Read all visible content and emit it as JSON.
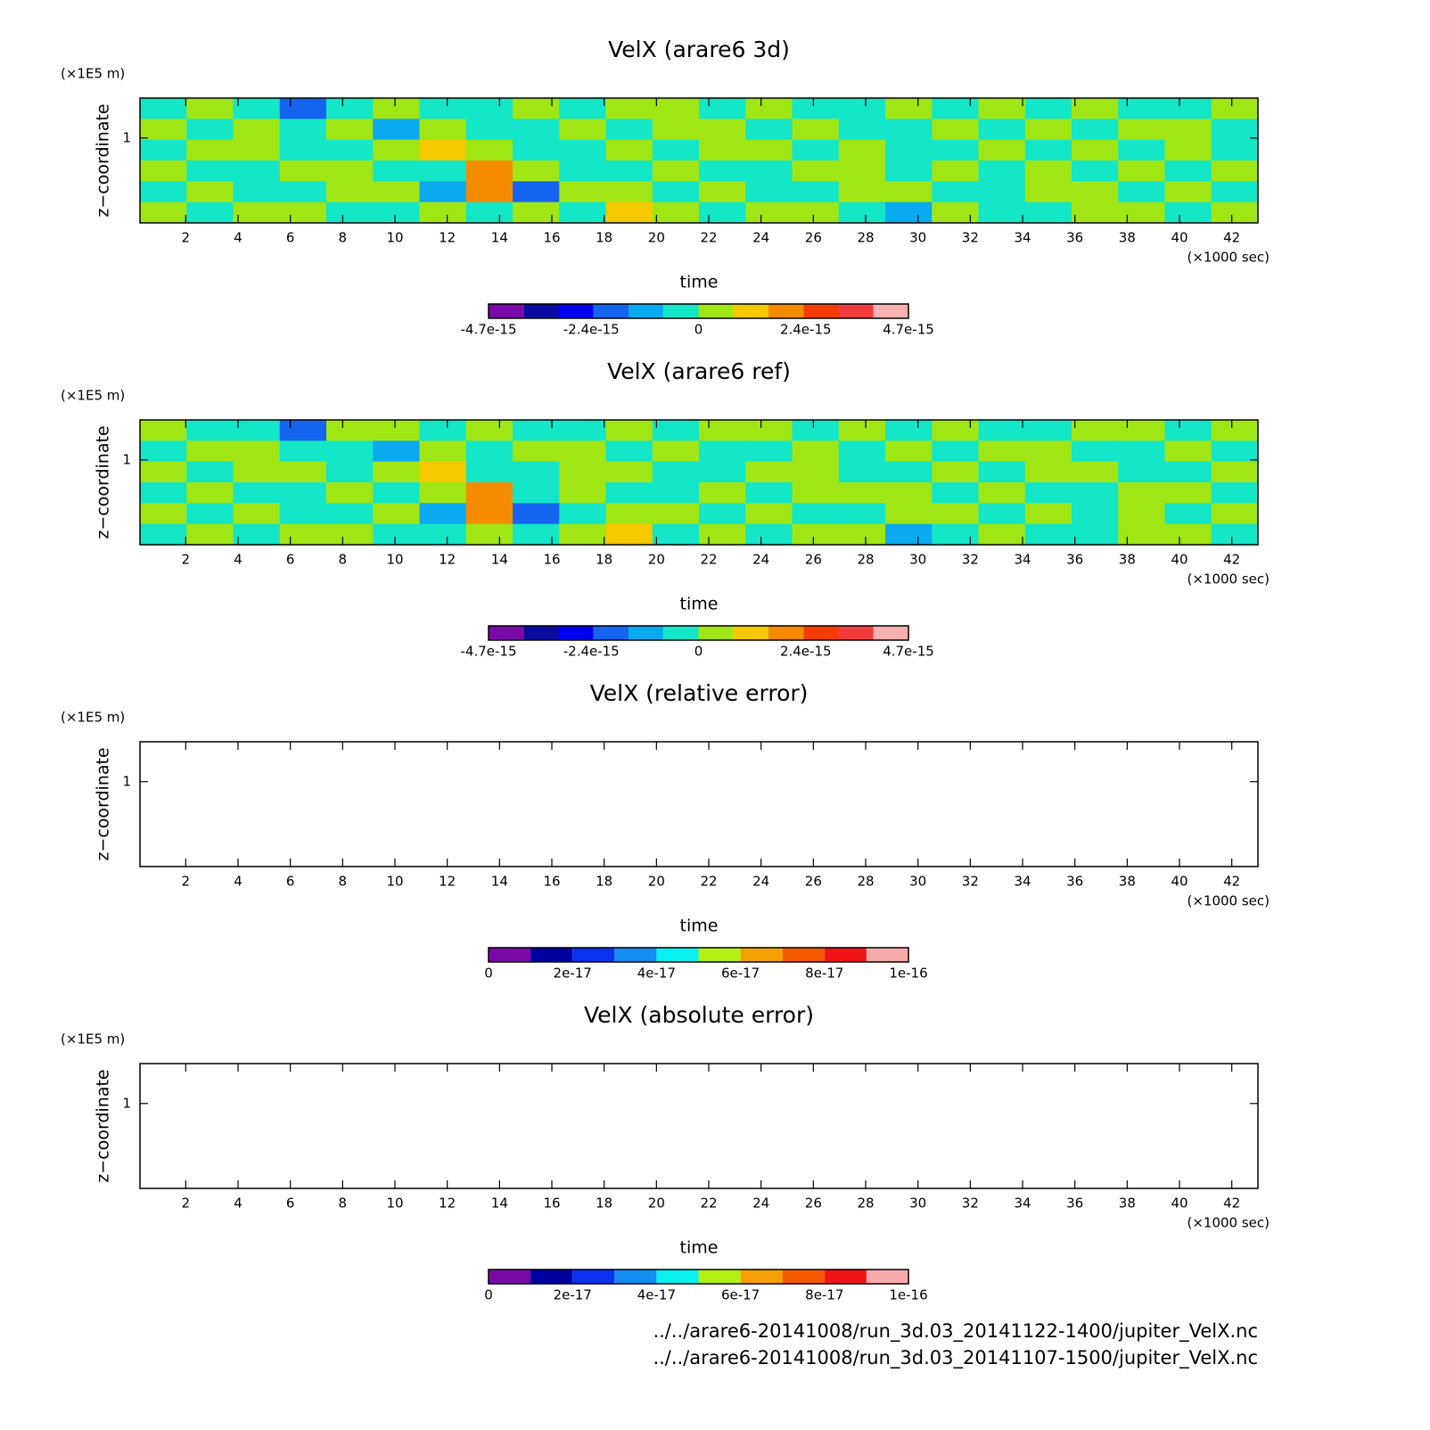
{
  "chart_data": [
    {
      "type": "contour",
      "title": "VelX (arare6 3d)",
      "xlabel": "time",
      "xunit": "(×1000 sec)",
      "ylabel": "z−coordinate",
      "yunit": "(×1E5 m)",
      "xlim": [
        0.25,
        43
      ],
      "ylim": [
        0,
        1.47
      ],
      "xticks": [
        2,
        4,
        6,
        8,
        10,
        12,
        14,
        16,
        18,
        20,
        22,
        24,
        26,
        28,
        30,
        32,
        34,
        36,
        38,
        40,
        42
      ],
      "yticks": [
        1
      ],
      "colorbar": {
        "lim": [
          -4.7e-15,
          4.7e-15
        ],
        "ticks": [
          -4.7e-15,
          -2.4e-15,
          0,
          2.4e-15,
          4.7e-15
        ],
        "colors": [
          "#7a0aa8",
          "#0a0aa0",
          "#0000f0",
          "#1464f0",
          "#0aaaf0",
          "#14e6c8",
          "#a0e614",
          "#f5c800",
          "#f58c00",
          "#f53c00",
          "#f03c3c",
          "#f8b0b0"
        ]
      },
      "values": [
        [
          -3e-16,
          3e-16,
          -3e-16,
          -2e-15,
          -3e-16,
          3e-16,
          -3e-16,
          -3e-16,
          3e-16,
          -3e-16,
          3e-16,
          3e-16,
          -3e-16,
          3e-16,
          -3e-16,
          -3e-16,
          3e-16,
          -3e-16,
          3e-16,
          -3e-16,
          3e-16,
          -3e-16,
          -3e-16,
          3e-16
        ],
        [
          3e-16,
          -3e-16,
          3e-16,
          -3e-16,
          3e-16,
          -1.2e-15,
          3e-16,
          -3e-16,
          -3e-16,
          3e-16,
          -3e-16,
          3e-16,
          3e-16,
          -3e-16,
          3e-16,
          -3e-16,
          -3e-16,
          3e-16,
          -3e-16,
          3e-16,
          -3e-16,
          3e-16,
          3e-16,
          -3e-16
        ],
        [
          -3e-16,
          3e-16,
          3e-16,
          -3e-16,
          -3e-16,
          3e-16,
          1.2e-15,
          3e-16,
          -3e-16,
          -3e-16,
          3e-16,
          -3e-16,
          3e-16,
          3e-16,
          -3e-16,
          3e-16,
          -3e-16,
          -3e-16,
          3e-16,
          -3e-16,
          3e-16,
          -3e-16,
          3e-16,
          -3e-16
        ],
        [
          3e-16,
          -3e-16,
          -3e-16,
          3e-16,
          3e-16,
          -3e-16,
          -3e-16,
          2e-15,
          3e-16,
          -3e-16,
          -3e-16,
          3e-16,
          -3e-16,
          -3e-16,
          3e-16,
          3e-16,
          -3e-16,
          3e-16,
          -3e-16,
          3e-16,
          -3e-16,
          3e-16,
          -3e-16,
          3e-16
        ],
        [
          -3e-16,
          3e-16,
          -3e-16,
          -3e-16,
          3e-16,
          3e-16,
          -1.2e-15,
          2e-15,
          -2e-15,
          3e-16,
          3e-16,
          -3e-16,
          3e-16,
          -3e-16,
          -3e-16,
          3e-16,
          3e-16,
          -3e-16,
          -3e-16,
          3e-16,
          3e-16,
          -3e-16,
          3e-16,
          -3e-16
        ],
        [
          3e-16,
          -3e-16,
          3e-16,
          3e-16,
          -3e-16,
          -3e-16,
          3e-16,
          -3e-16,
          3e-16,
          -3e-16,
          1.2e-15,
          3e-16,
          -3e-16,
          3e-16,
          3e-16,
          -3e-16,
          -1.2e-15,
          3e-16,
          -3e-16,
          -3e-16,
          3e-16,
          3e-16,
          -3e-16,
          3e-16
        ]
      ]
    },
    {
      "type": "contour",
      "title": "VelX (arare6 ref)",
      "xlabel": "time",
      "xunit": "(×1000 sec)",
      "ylabel": "z−coordinate",
      "yunit": "(×1E5 m)",
      "xlim": [
        0.25,
        43
      ],
      "ylim": [
        0,
        1.47
      ],
      "xticks": [
        2,
        4,
        6,
        8,
        10,
        12,
        14,
        16,
        18,
        20,
        22,
        24,
        26,
        28,
        30,
        32,
        34,
        36,
        38,
        40,
        42
      ],
      "yticks": [
        1
      ],
      "colorbar": {
        "lim": [
          -4.7e-15,
          4.7e-15
        ],
        "ticks": [
          -4.7e-15,
          -2.4e-15,
          0,
          2.4e-15,
          4.7e-15
        ],
        "colors": [
          "#7a0aa8",
          "#0a0aa0",
          "#0000f0",
          "#1464f0",
          "#0aaaf0",
          "#14e6c8",
          "#a0e614",
          "#f5c800",
          "#f58c00",
          "#f53c00",
          "#f03c3c",
          "#f8b0b0"
        ]
      },
      "values": [
        [
          3e-16,
          -3e-16,
          -3e-16,
          -2e-15,
          3e-16,
          3e-16,
          -3e-16,
          3e-16,
          -3e-16,
          -3e-16,
          3e-16,
          -3e-16,
          3e-16,
          3e-16,
          -3e-16,
          3e-16,
          -3e-16,
          3e-16,
          -3e-16,
          -3e-16,
          3e-16,
          3e-16,
          -3e-16,
          3e-16
        ],
        [
          -3e-16,
          3e-16,
          3e-16,
          -3e-16,
          -3e-16,
          -1.2e-15,
          3e-16,
          -3e-16,
          3e-16,
          3e-16,
          -3e-16,
          3e-16,
          -3e-16,
          -3e-16,
          3e-16,
          -3e-16,
          3e-16,
          -3e-16,
          3e-16,
          3e-16,
          -3e-16,
          -3e-16,
          3e-16,
          -3e-16
        ],
        [
          3e-16,
          -3e-16,
          3e-16,
          3e-16,
          -3e-16,
          3e-16,
          1.2e-15,
          -3e-16,
          -3e-16,
          3e-16,
          3e-16,
          -3e-16,
          -3e-16,
          3e-16,
          3e-16,
          -3e-16,
          -3e-16,
          3e-16,
          -3e-16,
          3e-16,
          3e-16,
          -3e-16,
          -3e-16,
          3e-16
        ],
        [
          -3e-16,
          3e-16,
          -3e-16,
          -3e-16,
          3e-16,
          -3e-16,
          3e-16,
          2e-15,
          -3e-16,
          3e-16,
          -3e-16,
          -3e-16,
          3e-16,
          -3e-16,
          3e-16,
          3e-16,
          3e-16,
          -3e-16,
          3e-16,
          -3e-16,
          -3e-16,
          3e-16,
          3e-16,
          -3e-16
        ],
        [
          3e-16,
          -3e-16,
          3e-16,
          -3e-16,
          -3e-16,
          3e-16,
          -1.2e-15,
          2e-15,
          -2e-15,
          -3e-16,
          3e-16,
          3e-16,
          -3e-16,
          3e-16,
          -3e-16,
          -3e-16,
          3e-16,
          3e-16,
          -3e-16,
          3e-16,
          -3e-16,
          3e-16,
          -3e-16,
          3e-16
        ],
        [
          -3e-16,
          3e-16,
          -3e-16,
          3e-16,
          3e-16,
          -3e-16,
          -3e-16,
          3e-16,
          -3e-16,
          3e-16,
          1.2e-15,
          -3e-16,
          3e-16,
          -3e-16,
          3e-16,
          3e-16,
          -1.2e-15,
          -3e-16,
          3e-16,
          -3e-16,
          -3e-16,
          3e-16,
          3e-16,
          -3e-16
        ]
      ]
    },
    {
      "type": "contour",
      "title": "VelX (relative error)",
      "xlabel": "time",
      "xunit": "(×1000 sec)",
      "ylabel": "z−coordinate",
      "yunit": "(×1E5 m)",
      "xlim": [
        0.25,
        43
      ],
      "ylim": [
        0,
        1.47
      ],
      "xticks": [
        2,
        4,
        6,
        8,
        10,
        12,
        14,
        16,
        18,
        20,
        22,
        24,
        26,
        28,
        30,
        32,
        34,
        36,
        38,
        40,
        42
      ],
      "yticks": [
        1
      ],
      "colorbar": {
        "lim": [
          0,
          1e-16
        ],
        "ticks": [
          0,
          2e-17,
          4e-17,
          6e-17,
          8e-17,
          1e-16
        ],
        "colors": [
          "#7a0aa8",
          "#0000a0",
          "#0a32f0",
          "#148cf0",
          "#0af0f0",
          "#b4f014",
          "#f5a000",
          "#f55a00",
          "#f01414",
          "#f8aaaa"
        ]
      }
    },
    {
      "type": "contour",
      "title": "VelX (absolute error)",
      "xlabel": "time",
      "xunit": "(×1000 sec)",
      "ylabel": "z−coordinate",
      "yunit": "(×1E5 m)",
      "xlim": [
        0.25,
        43
      ],
      "ylim": [
        0,
        1.47
      ],
      "xticks": [
        2,
        4,
        6,
        8,
        10,
        12,
        14,
        16,
        18,
        20,
        22,
        24,
        26,
        28,
        30,
        32,
        34,
        36,
        38,
        40,
        42
      ],
      "yticks": [
        1
      ],
      "colorbar": {
        "lim": [
          0,
          1e-16
        ],
        "ticks": [
          0,
          2e-17,
          4e-17,
          6e-17,
          8e-17,
          1e-16
        ],
        "colors": [
          "#7a0aa8",
          "#0000a0",
          "#0a32f0",
          "#148cf0",
          "#0af0f0",
          "#b4f014",
          "#f5a000",
          "#f55a00",
          "#f01414",
          "#f8aaaa"
        ]
      }
    }
  ],
  "footer": [
    "../../arare6-20141008/run_3d.03_20141122-1400/jupiter_VelX.nc",
    "../../arare6-20141008/run_3d.03_20141107-1500/jupiter_VelX.nc"
  ]
}
